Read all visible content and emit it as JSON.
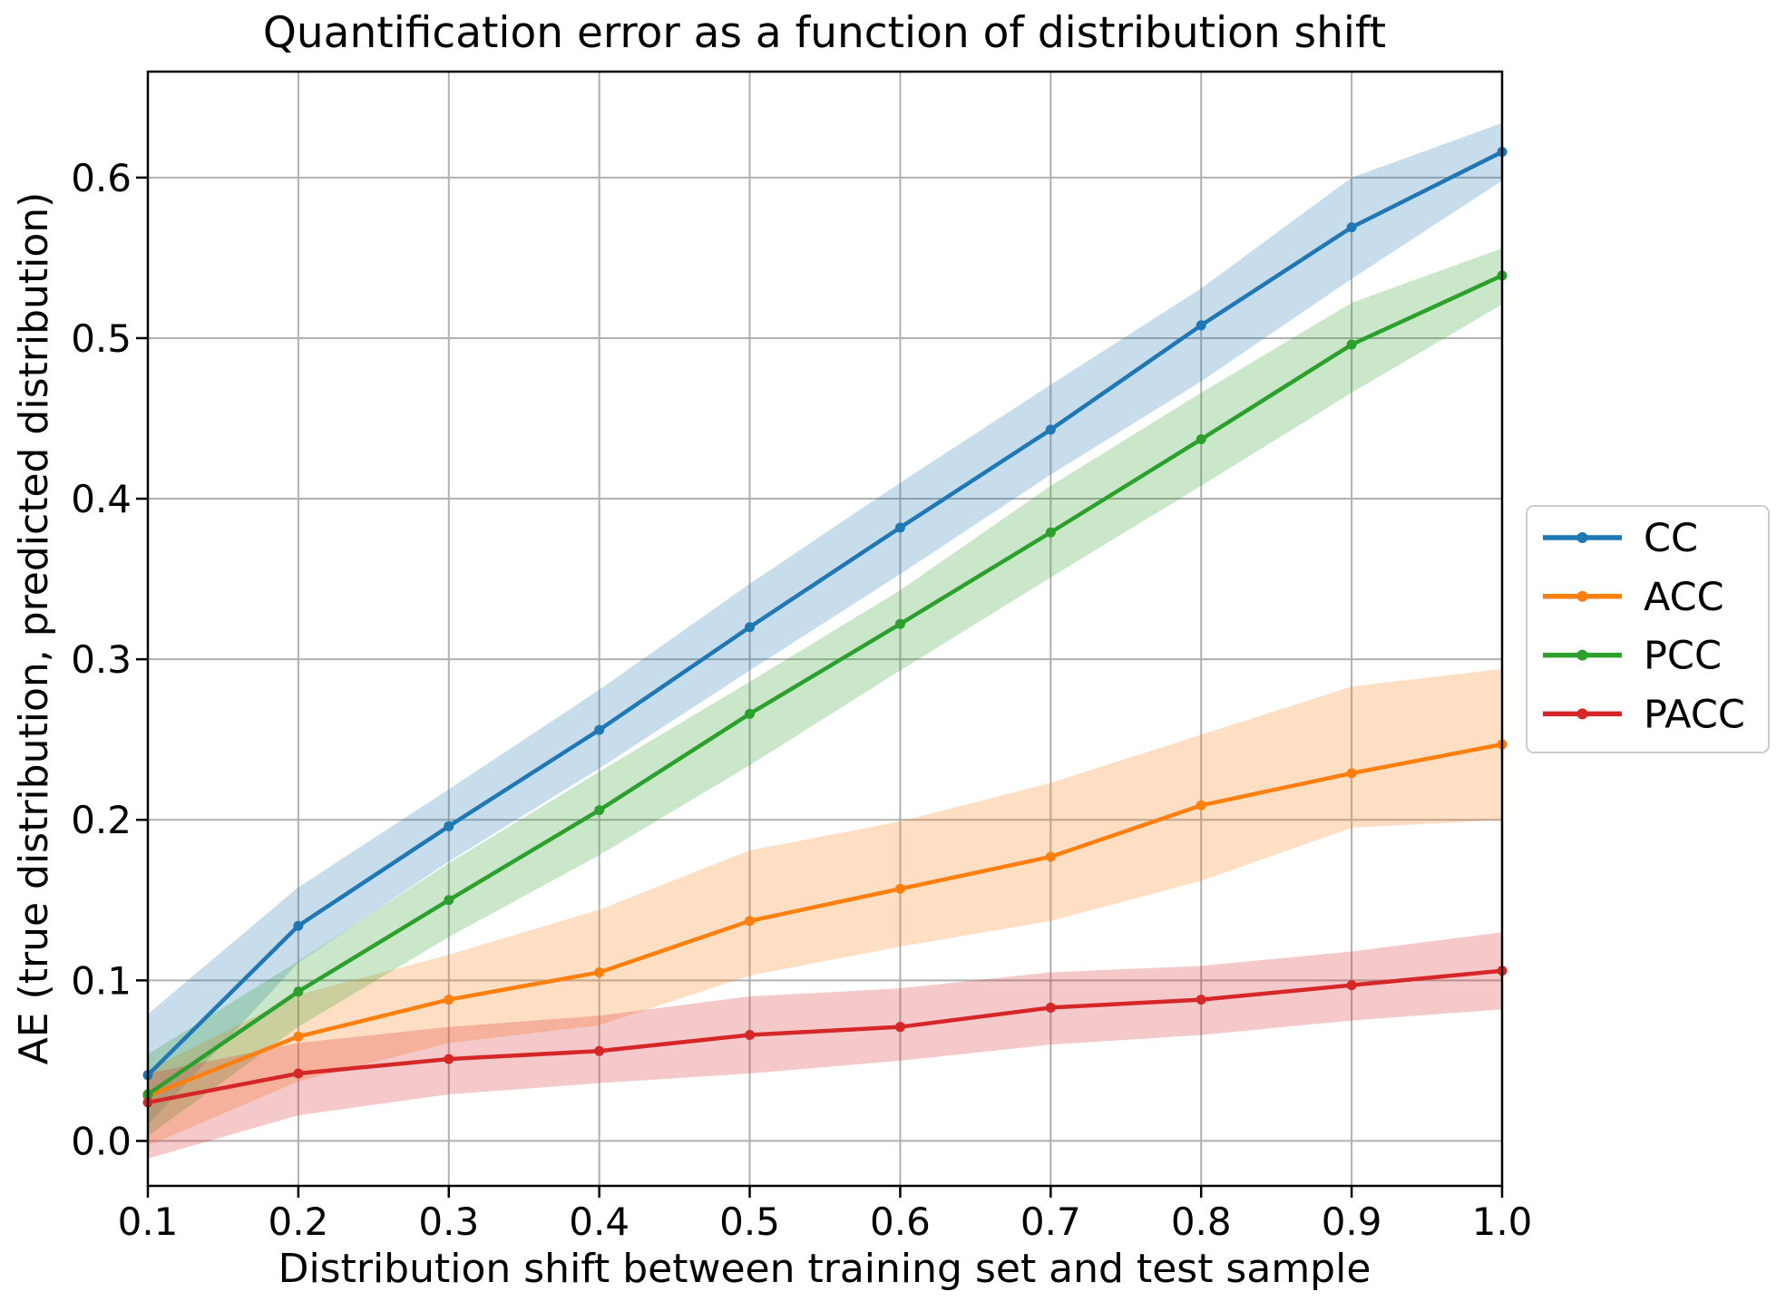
{
  "title": "Quantification error as a function of distribution shift",
  "xlabel": "Distribution shift between training set and test sample",
  "ylabel": "AE (true distribution, predicted distribution)",
  "chart_data": {
    "type": "line",
    "x": [
      0.1,
      0.2,
      0.3,
      0.4,
      0.5,
      0.6,
      0.7,
      0.8,
      0.9,
      1.0
    ],
    "series": [
      {
        "name": "CC",
        "color": "#1f77b4",
        "values": [
          0.041,
          0.134,
          0.196,
          0.256,
          0.32,
          0.382,
          0.443,
          0.508,
          0.569,
          0.616
        ],
        "band_lower": [
          0.01,
          0.111,
          0.174,
          0.232,
          0.293,
          0.353,
          0.415,
          0.473,
          0.537,
          0.598
        ],
        "band_upper": [
          0.079,
          0.158,
          0.219,
          0.281,
          0.347,
          0.41,
          0.471,
          0.531,
          0.6,
          0.634
        ]
      },
      {
        "name": "ACC",
        "color": "#ff7f0e",
        "values": [
          0.028,
          0.065,
          0.088,
          0.105,
          0.137,
          0.157,
          0.177,
          0.209,
          0.229,
          0.247
        ],
        "band_lower": [
          -0.003,
          0.037,
          0.061,
          0.072,
          0.103,
          0.121,
          0.137,
          0.162,
          0.195,
          0.2
        ],
        "band_upper": [
          0.044,
          0.091,
          0.116,
          0.144,
          0.181,
          0.199,
          0.223,
          0.253,
          0.283,
          0.294
        ]
      },
      {
        "name": "PCC",
        "color": "#2ca02c",
        "values": [
          0.029,
          0.093,
          0.15,
          0.206,
          0.266,
          0.322,
          0.379,
          0.437,
          0.496,
          0.539
        ],
        "band_lower": [
          0.003,
          0.071,
          0.127,
          0.178,
          0.234,
          0.293,
          0.351,
          0.408,
          0.466,
          0.521
        ],
        "band_upper": [
          0.054,
          0.112,
          0.173,
          0.23,
          0.286,
          0.343,
          0.408,
          0.466,
          0.522,
          0.556
        ]
      },
      {
        "name": "PACC",
        "color": "#d62728",
        "values": [
          0.024,
          0.042,
          0.051,
          0.056,
          0.066,
          0.071,
          0.083,
          0.088,
          0.097,
          0.106
        ],
        "band_lower": [
          -0.011,
          0.016,
          0.029,
          0.036,
          0.042,
          0.05,
          0.06,
          0.066,
          0.075,
          0.082
        ],
        "band_upper": [
          0.042,
          0.061,
          0.071,
          0.078,
          0.09,
          0.095,
          0.105,
          0.109,
          0.118,
          0.13
        ]
      }
    ],
    "x_ticks": [
      "0.1",
      "0.2",
      "0.3",
      "0.4",
      "0.5",
      "0.6",
      "0.7",
      "0.8",
      "0.9",
      "1.0"
    ],
    "y_ticks": [
      "0.0",
      "0.1",
      "0.2",
      "0.3",
      "0.4",
      "0.5",
      "0.6"
    ],
    "xlim": [
      0.1,
      1.0
    ],
    "ylim": [
      -0.028,
      0.666
    ],
    "grid": true,
    "band_opacity": 0.25,
    "legend_position": "outside-right"
  },
  "legend": {
    "items": [
      {
        "label": "CC",
        "color": "#1f77b4"
      },
      {
        "label": "ACC",
        "color": "#ff7f0e"
      },
      {
        "label": "PCC",
        "color": "#2ca02c"
      },
      {
        "label": "PACC",
        "color": "#d62728"
      }
    ]
  },
  "colors": {
    "grid": "#b0b0b0",
    "spine": "#000000",
    "background": "#ffffff",
    "legend_border": "#cccccc"
  }
}
